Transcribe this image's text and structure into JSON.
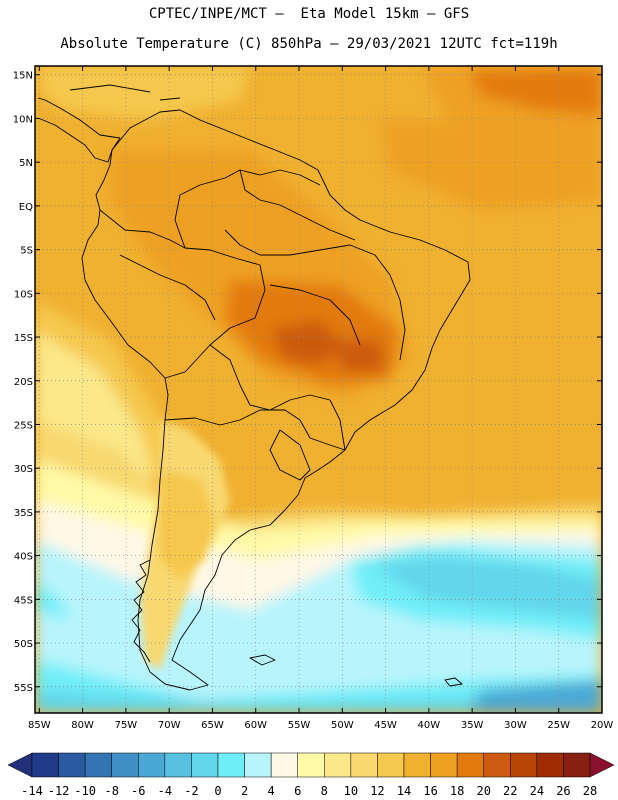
{
  "header": {
    "line1": "CPTEC/INPE/MCT –  Eta Model 15km – GFS",
    "line2": "Absolute Temperature (C) 850hPa – 29/03/2021 12UTC fct=119h"
  },
  "map": {
    "lat_labels": [
      "15N",
      "10N",
      "5N",
      "EQ",
      "5S",
      "10S",
      "15S",
      "20S",
      "25S",
      "30S",
      "35S",
      "40S",
      "45S",
      "50S",
      "55S"
    ],
    "lon_labels": [
      "85W",
      "80W",
      "75W",
      "70W",
      "65W",
      "60W",
      "55W",
      "50W",
      "45W",
      "40W",
      "35W",
      "30W",
      "25W",
      "20W"
    ],
    "lat_range": [
      -58,
      16
    ],
    "lon_range": [
      -85.5,
      -20
    ]
  },
  "colorbar": {
    "labels": [
      "-14",
      "-12",
      "-10",
      "-8",
      "-6",
      "-4",
      "-2",
      "0",
      "2",
      "4",
      "6",
      "8",
      "10",
      "12",
      "14",
      "16",
      "18",
      "20",
      "22",
      "24",
      "26",
      "28"
    ],
    "colors": [
      "#1f3b8a",
      "#2a5aa0",
      "#3474b3",
      "#3f8fc6",
      "#4ba8d4",
      "#58c0e0",
      "#62d6ea",
      "#70eef8",
      "#b8f4fc",
      "#fff8e6",
      "#fffaa8",
      "#fbe88a",
      "#f8d870",
      "#f5c84e",
      "#f0b030",
      "#eea020",
      "#e37a10",
      "#cc5a10",
      "#b84408",
      "#a02c04",
      "#862010"
    ],
    "under_color": "#23317a",
    "over_color": "#8a1030"
  }
}
